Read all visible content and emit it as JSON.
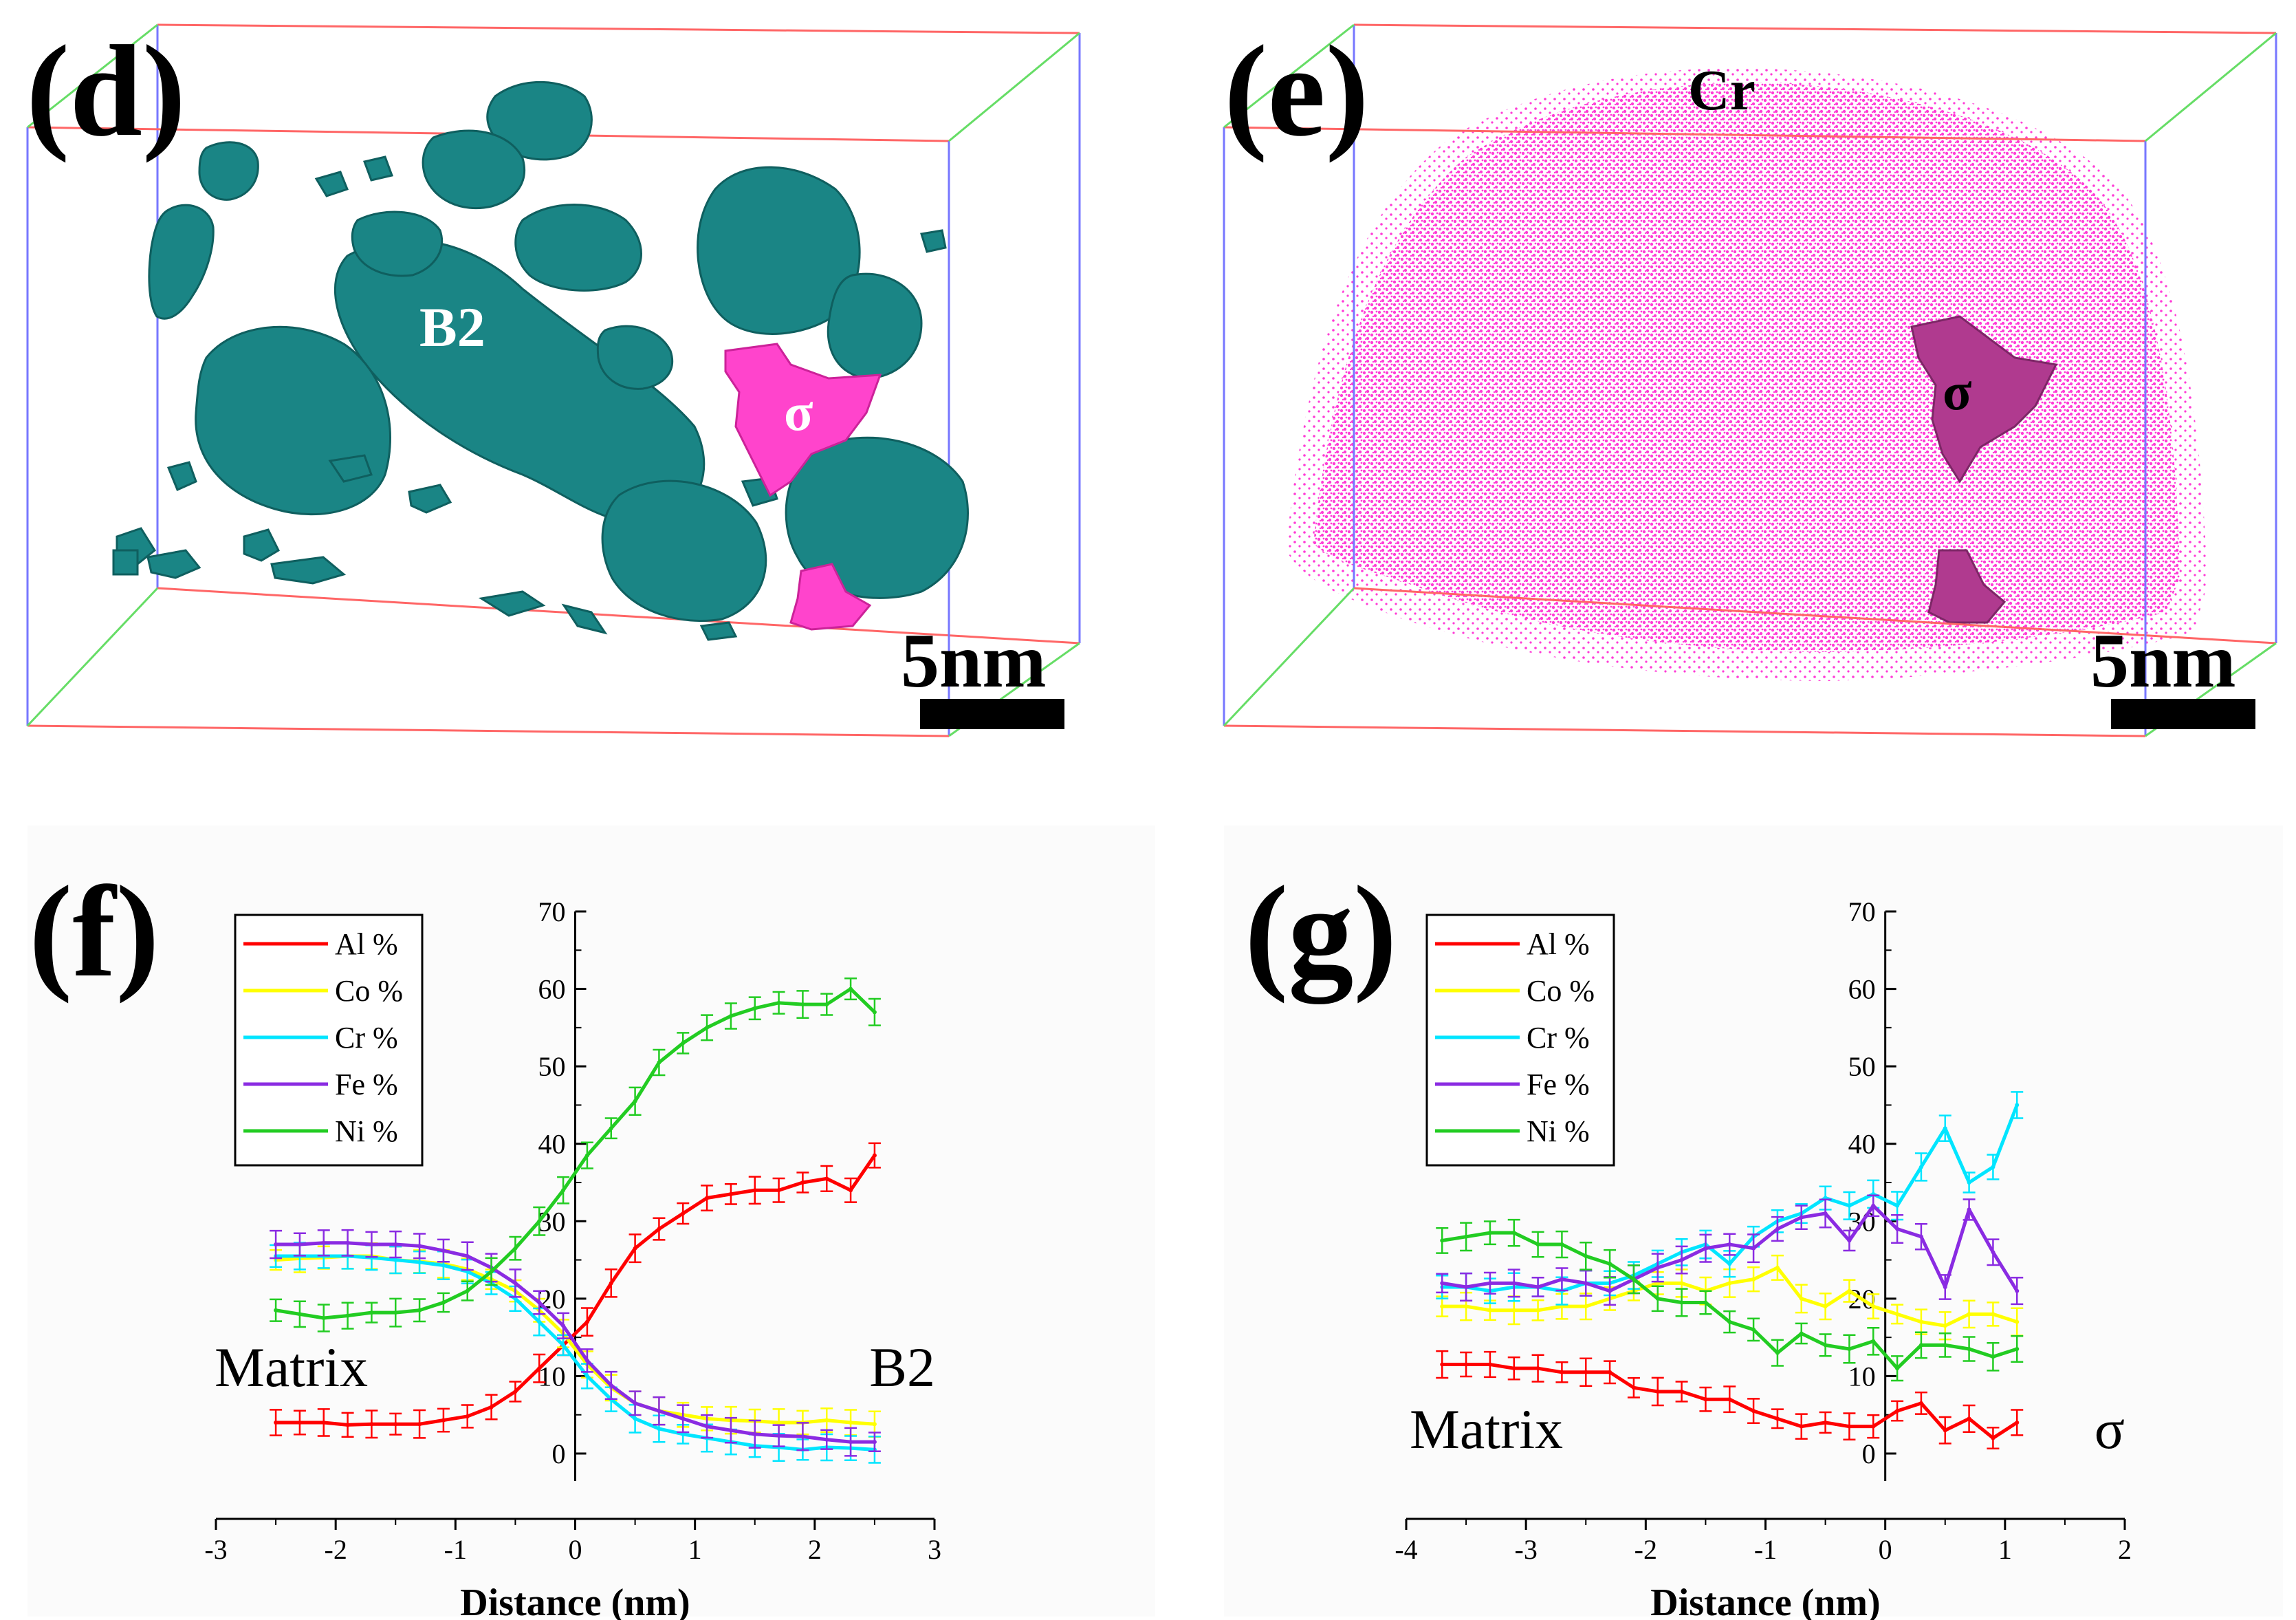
{
  "panels": {
    "d": {
      "label": "(d)",
      "phase_b2": "B2",
      "phase_sigma": "σ",
      "scale_bar": "5nm"
    },
    "e": {
      "label": "(e)",
      "element": "Cr",
      "phase_sigma": "σ",
      "scale_bar": "5nm"
    },
    "f": {
      "label": "(f)"
    },
    "g": {
      "label": "(g)"
    }
  },
  "colors": {
    "Al": "#ff0000",
    "Co": "#ffff00",
    "Cr": "#00e5ff",
    "Fe": "#8a2be2",
    "Ni": "#22cc22",
    "b2": "#1a8585",
    "sigma": "#ff44cc",
    "cr_dots": "#ff3bd6"
  },
  "chart_data": [
    {
      "type": "line",
      "panel": "f",
      "xlabel": "Distance (nm)",
      "ylabel": "",
      "xlim": [
        -3,
        3
      ],
      "ylim": [
        0,
        70
      ],
      "xticks": [
        -3,
        -2,
        -1,
        0,
        1,
        2,
        3
      ],
      "yticks": [
        0,
        10,
        20,
        30,
        40,
        50,
        60,
        70
      ],
      "legend": [
        "Al %",
        "Co %",
        "Cr %",
        "Fe %",
        "Ni %"
      ],
      "legend_position": "top-left",
      "annotations": {
        "left": "Matrix",
        "right": "B2"
      },
      "x": [
        -2.5,
        -2.3,
        -2.1,
        -1.9,
        -1.7,
        -1.5,
        -1.3,
        -1.1,
        -0.9,
        -0.7,
        -0.5,
        -0.3,
        -0.1,
        0.1,
        0.3,
        0.5,
        0.7,
        0.9,
        1.1,
        1.3,
        1.5,
        1.7,
        1.9,
        2.1,
        2.3,
        2.5
      ],
      "series": [
        {
          "name": "Al %",
          "values": [
            4,
            4,
            4,
            3.7,
            3.8,
            3.8,
            3.8,
            4.3,
            4.8,
            6,
            8,
            11,
            14,
            17,
            22,
            26.5,
            29,
            31,
            33,
            33.5,
            34,
            34,
            35,
            35.5,
            34,
            38.5
          ]
        },
        {
          "name": "Co %",
          "values": [
            25,
            25.2,
            25.3,
            25.5,
            25.5,
            25,
            24.8,
            24.5,
            23.8,
            22.5,
            21,
            18.5,
            15.5,
            11.5,
            8.5,
            6.5,
            5.5,
            5,
            4.5,
            4.3,
            4.2,
            4,
            4,
            4.3,
            4,
            3.8
          ]
        },
        {
          "name": "Cr %",
          "values": [
            25.5,
            25.5,
            25.5,
            25.5,
            25.3,
            25,
            24.7,
            24.3,
            23.5,
            22,
            20,
            17,
            14,
            10,
            7,
            4.5,
            3.2,
            2.5,
            2,
            1.5,
            1,
            0.8,
            0.5,
            0.8,
            0.7,
            0.5
          ]
        },
        {
          "name": "Fe %",
          "values": [
            27,
            27,
            27.2,
            27.2,
            27,
            27,
            26.8,
            26.2,
            25.5,
            24,
            22,
            19.5,
            16.5,
            12,
            8.8,
            6.5,
            5.5,
            4.5,
            3.5,
            3,
            2.5,
            2.3,
            2.2,
            1.8,
            1.5,
            1.5
          ]
        },
        {
          "name": "Ni %",
          "values": [
            18.5,
            18,
            17.5,
            17.8,
            18.2,
            18.2,
            18.5,
            19.5,
            21,
            23.5,
            26.5,
            30,
            34,
            38.5,
            42,
            45.5,
            50.5,
            53,
            55,
            56.5,
            57.5,
            58.2,
            58,
            58,
            60,
            57
          ]
        }
      ]
    },
    {
      "type": "line",
      "panel": "g",
      "xlabel": "Distance (nm)",
      "ylabel": "",
      "xlim": [
        -4,
        2
      ],
      "ylim": [
        0,
        70
      ],
      "xticks": [
        -4,
        -3,
        -2,
        -1,
        0,
        1,
        2
      ],
      "yticks": [
        0,
        10,
        20,
        30,
        40,
        50,
        60,
        70
      ],
      "legend": [
        "Al %",
        "Co %",
        "Cr %",
        "Fe %",
        "Ni %"
      ],
      "legend_position": "top-left",
      "annotations": {
        "left": "Matrix",
        "right": "σ"
      },
      "x": [
        -3.7,
        -3.5,
        -3.3,
        -3.1,
        -2.9,
        -2.7,
        -2.5,
        -2.3,
        -2.1,
        -1.9,
        -1.7,
        -1.5,
        -1.3,
        -1.1,
        -0.9,
        -0.7,
        -0.5,
        -0.3,
        -0.1,
        0.1,
        0.3,
        0.5,
        0.7,
        0.9,
        1.1
      ],
      "series": [
        {
          "name": "Al %",
          "values": [
            11.5,
            11.5,
            11.5,
            11,
            11,
            10.5,
            10.5,
            10.5,
            8.5,
            8,
            8,
            7,
            7,
            5.5,
            4.5,
            3.5,
            4,
            3.5,
            3.5,
            5.5,
            6.5,
            3,
            4.5,
            2,
            4
          ]
        },
        {
          "name": "Co %",
          "values": [
            19,
            19,
            18.5,
            18.5,
            18.5,
            19,
            19,
            20,
            21,
            22,
            22,
            21,
            22,
            22.5,
            24,
            20,
            19,
            21,
            19,
            18,
            17,
            16.5,
            18,
            18,
            17
          ]
        },
        {
          "name": "Cr %",
          "values": [
            21.5,
            21.5,
            21,
            21.5,
            21.5,
            21,
            22,
            22,
            23,
            24.5,
            26,
            27,
            24.5,
            28,
            30,
            31,
            33,
            32,
            33.5,
            32,
            37,
            42,
            35,
            37,
            45
          ]
        },
        {
          "name": "Fe %",
          "values": [
            22,
            21.5,
            22,
            22,
            21.5,
            22.5,
            22,
            21,
            22.5,
            24,
            25,
            26.5,
            27,
            26.5,
            29,
            30.5,
            31,
            27.5,
            32,
            29,
            28,
            21.5,
            31.5,
            26,
            21
          ]
        },
        {
          "name": "Ni %",
          "values": [
            27.5,
            28,
            28.5,
            28.5,
            27,
            27,
            25.5,
            24.5,
            22.5,
            20,
            19.5,
            19.5,
            17,
            16,
            13,
            15.5,
            14,
            13.5,
            14.5,
            11,
            14,
            14,
            13.5,
            12.5,
            13.5
          ]
        }
      ]
    }
  ]
}
